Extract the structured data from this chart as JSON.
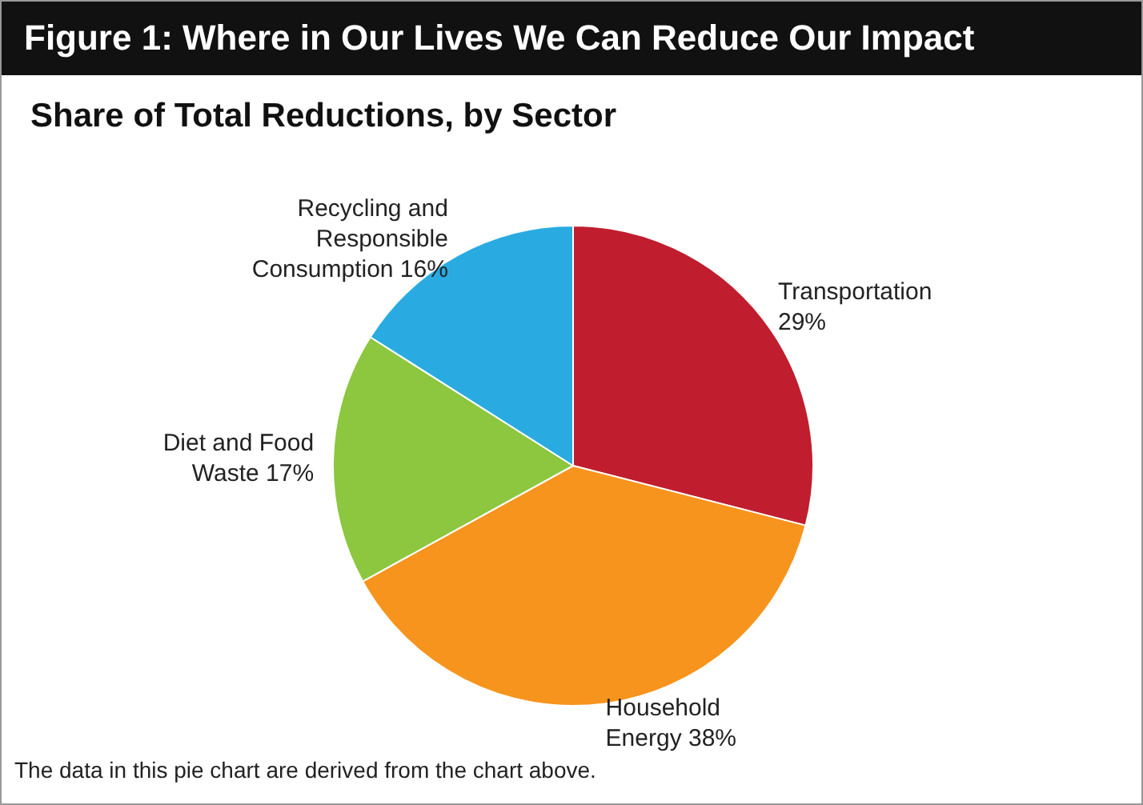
{
  "chart_data": {
    "type": "pie",
    "title": "Figure 1: Where in Our Lives We Can Reduce Our Impact",
    "subtitle": "Share of Total Reductions, by Sector",
    "categories": [
      "Transportation",
      "Household Energy",
      "Diet and Food Waste",
      "Recycling and Responsible Consumption"
    ],
    "values": [
      29,
      38,
      17,
      16
    ],
    "value_labels": [
      "29%",
      "38%",
      "17%",
      "16%"
    ],
    "colors": [
      "#c01e2e",
      "#f7941d",
      "#8dc63f",
      "#29abe2"
    ],
    "annotations": [
      "The data in this pie chart are derived from the chart above."
    ]
  }
}
